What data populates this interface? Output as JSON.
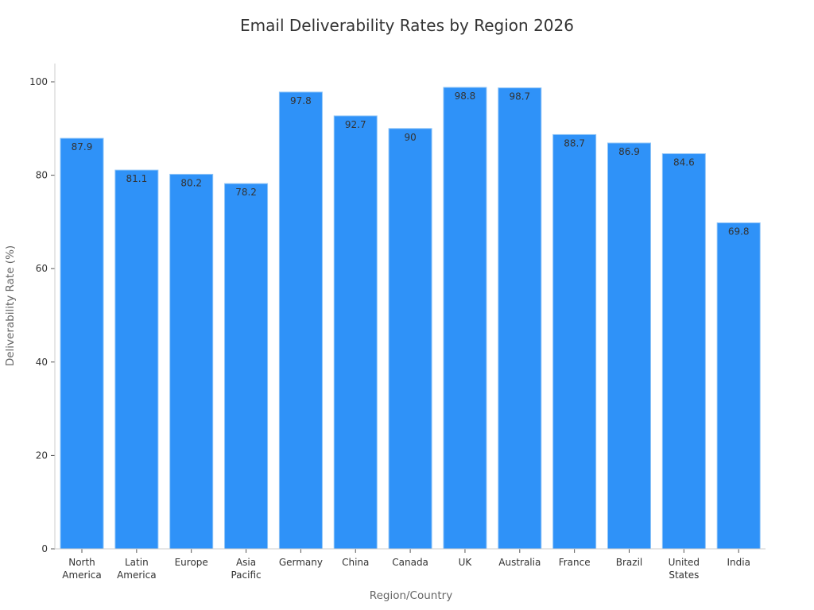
{
  "chart_data": {
    "type": "bar",
    "title": "Email Deliverability Rates by Region 2026",
    "xlabel": "Region/Country",
    "ylabel": "Deliverability Rate (%)",
    "categories": [
      "North America",
      "Latin America",
      "Europe",
      "Asia Pacific",
      "Germany",
      "China",
      "Canada",
      "UK",
      "Australia",
      "France",
      "Brazil",
      "United States",
      "India"
    ],
    "category_lines": [
      [
        "North",
        "America"
      ],
      [
        "Latin",
        "America"
      ],
      [
        "Europe"
      ],
      [
        "Asia",
        "Pacific"
      ],
      [
        "Germany"
      ],
      [
        "China"
      ],
      [
        "Canada"
      ],
      [
        "UK"
      ],
      [
        "Australia"
      ],
      [
        "France"
      ],
      [
        "Brazil"
      ],
      [
        "United",
        "States"
      ],
      [
        "India"
      ]
    ],
    "values": [
      87.9,
      81.1,
      80.2,
      78.2,
      97.8,
      92.7,
      90,
      98.8,
      98.7,
      88.7,
      86.9,
      84.6,
      69.8
    ],
    "data_labels": [
      "87.9",
      "81.1",
      "80.2",
      "78.2",
      "97.8",
      "92.7",
      "90",
      "98.8",
      "98.7",
      "88.7",
      "86.9",
      "84.6",
      "69.8"
    ],
    "ylim": [
      0,
      100
    ],
    "yticks": [
      0,
      20,
      40,
      60,
      80,
      100
    ],
    "grid": false,
    "legend": "none",
    "colors": {
      "bar": "#2f92f8",
      "bar_edge": "#8ec4f7",
      "axis": "#cccccc",
      "text": "#333333"
    }
  }
}
